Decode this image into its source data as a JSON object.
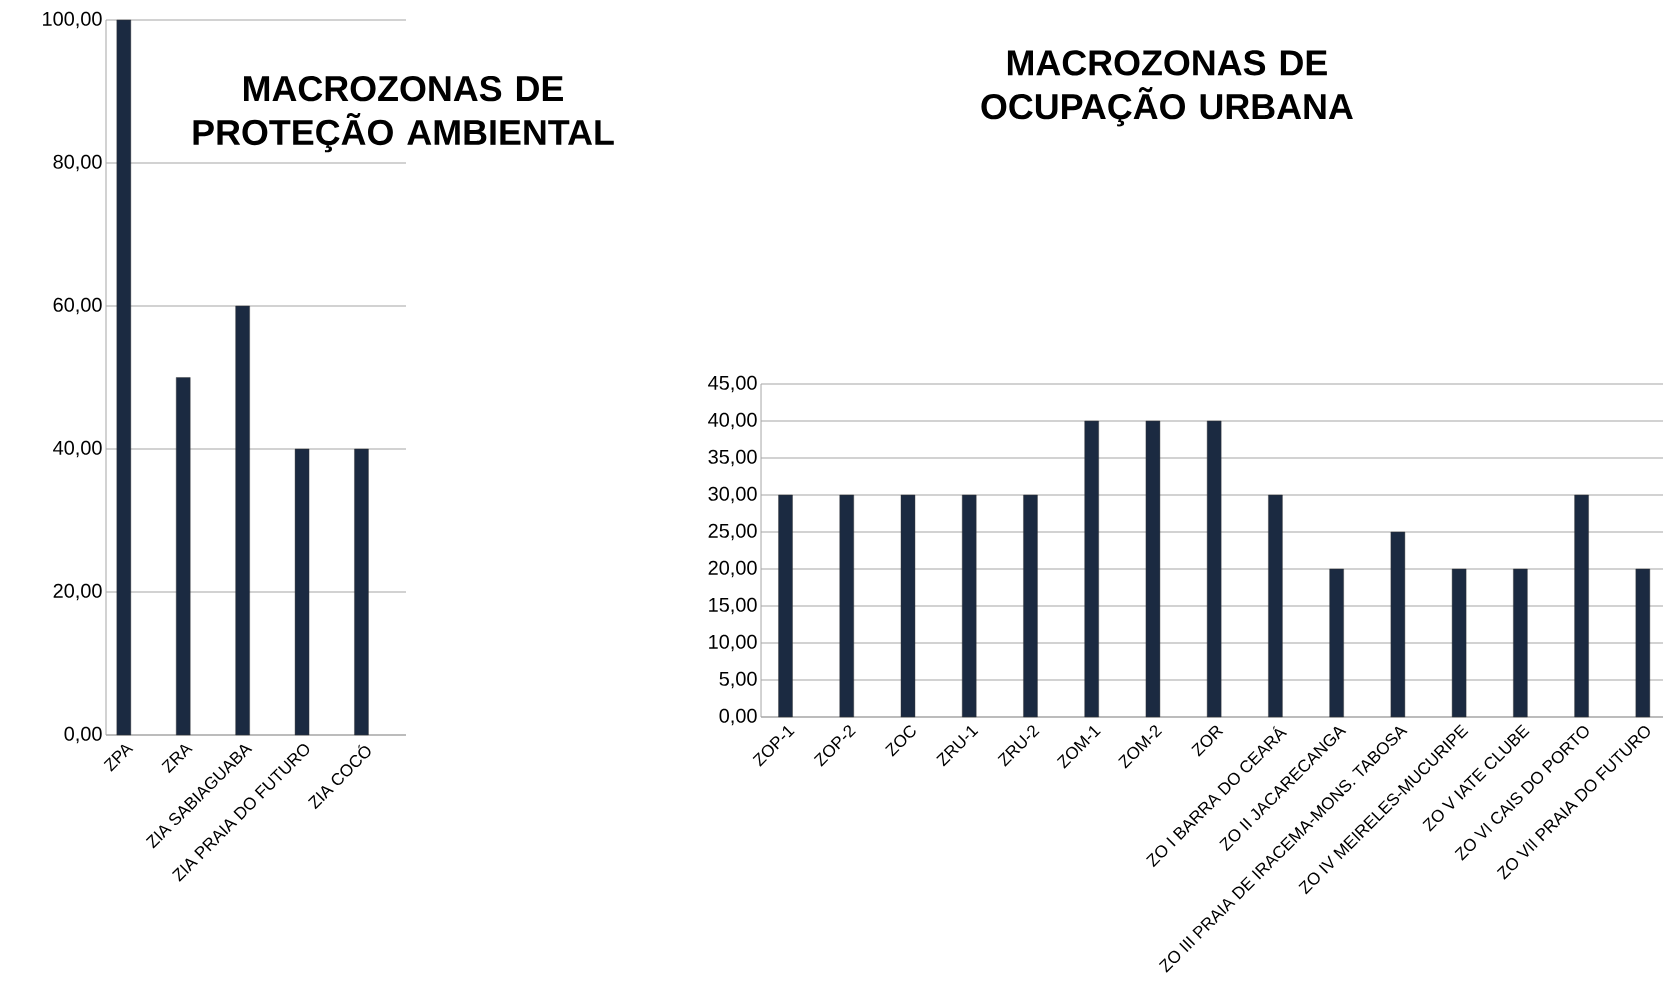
{
  "chart_data": [
    {
      "type": "bar",
      "title": "MACROZONAS DE PROTEÇÃO AMBIENTAL",
      "categories": [
        "ZPA",
        "ZRA",
        "ZIA SABIAGUABA",
        "ZIA PRAIA DO FUTURO",
        "ZIA COCÓ"
      ],
      "values": [
        100,
        50,
        60,
        40,
        40
      ],
      "color": "#1b2a41",
      "ylim": [
        0,
        100
      ],
      "yticks": [
        {
          "value": 0,
          "label": "0,00"
        },
        {
          "value": 20,
          "label": "20,00"
        },
        {
          "value": 40,
          "label": "40,00"
        },
        {
          "value": 60,
          "label": "60,00"
        },
        {
          "value": 80,
          "label": "80,00"
        },
        {
          "value": 100,
          "label": "100,00"
        }
      ],
      "grid": "y"
    },
    {
      "type": "bar",
      "title": "MACROZONAS DE OCUPAÇÃO URBANA",
      "categories": [
        "ZOP-1",
        "ZOP-2",
        "ZOC",
        "ZRU-1",
        "ZRU-2",
        "ZOM-1",
        "ZOM-2",
        "ZOR",
        "ZO I BARRA DO CEARÁ",
        "ZO II JACARECANGA",
        "ZO III PRAIA DE IRACEMA-MONS. TABOSA",
        "ZO IV MEIRELES-MUCURIPE",
        "ZO V IATE CLUBE",
        "ZO VI CAIS DO PORTO",
        "ZO VII PRAIA DO FUTURO"
      ],
      "values": [
        30,
        30,
        30,
        30,
        30,
        40,
        40,
        40,
        30,
        20,
        25,
        20,
        20,
        30,
        20
      ],
      "color": "#1b2a41",
      "ylim": [
        0,
        45
      ],
      "yticks": [
        {
          "value": 0,
          "label": "0,00"
        },
        {
          "value": 5,
          "label": "5,00"
        },
        {
          "value": 10,
          "label": "10,00"
        },
        {
          "value": 15,
          "label": "15,00"
        },
        {
          "value": 20,
          "label": "20,00"
        },
        {
          "value": 25,
          "label": "25,00"
        },
        {
          "value": 30,
          "label": "30,00"
        },
        {
          "value": 35,
          "label": "35,00"
        },
        {
          "value": 40,
          "label": "40,00"
        },
        {
          "value": 45,
          "label": "45,00"
        }
      ],
      "grid": "y"
    }
  ]
}
